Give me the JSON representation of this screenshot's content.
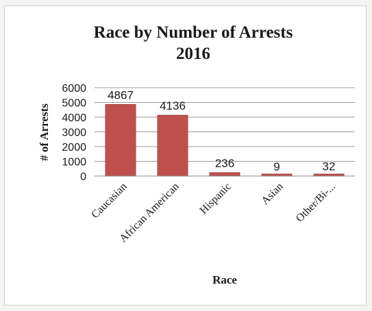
{
  "chart_data": {
    "type": "bar",
    "title": "Race by Number of Arrests",
    "subtitle": "2016",
    "xlabel": "Race",
    "ylabel": "# of Arrests",
    "categories": [
      "Caucasian",
      "African American",
      "Hispanic",
      "Asian",
      "Other/Bi-..."
    ],
    "values": [
      4867,
      4136,
      236,
      9,
      32
    ],
    "ylim": [
      0,
      6000
    ],
    "yticks": [
      0,
      1000,
      2000,
      3000,
      4000,
      5000,
      6000
    ],
    "grid": true,
    "legend": "none",
    "bar_color": "#c0504d"
  }
}
